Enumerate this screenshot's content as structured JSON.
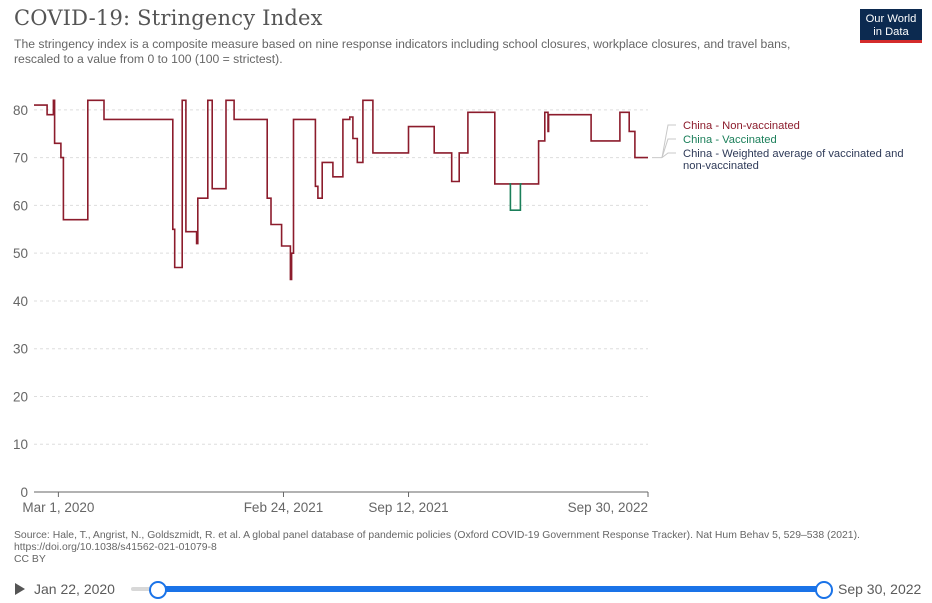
{
  "header": {
    "title": "COVID-19: Stringency Index",
    "subtitle": "The stringency index is a composite measure based on nine response indicators including school closures, workplace closures, and travel bans, rescaled to a value from 0 to 100 (100 = strictest).",
    "logo_line1": "Our World",
    "logo_line2": "in Data"
  },
  "footer": {
    "source": "Source: Hale, T., Angrist, N., Goldszmidt, R. et al. A global panel database of pandemic policies (Oxford COVID-19 Government Response Tracker). Nat Hum Behav 5, 529–538 (2021). https://doi.org/10.1038/s41562-021-01079-8",
    "license": "CC BY"
  },
  "timeline": {
    "start_label": "Jan 22, 2020",
    "end_label": "Sep 30, 2022",
    "selected_start_fraction": 0,
    "selected_end_fraction": 1,
    "accent_color": "#1a73e8"
  },
  "colors": {
    "non_vaccinated": "#8c1c2c",
    "vaccinated": "#1b7f5a",
    "weighted": "#2e3a58",
    "grid": "#dddddd",
    "axis": "#666666"
  },
  "chart_data": {
    "type": "line",
    "title": "COVID-19: Stringency Index",
    "xlim": [
      "2020-01-22",
      "2022-09-30"
    ],
    "ylim": [
      0,
      85
    ],
    "yticks": [
      0,
      10,
      20,
      30,
      40,
      50,
      60,
      70,
      80
    ],
    "xticks": [
      {
        "date": "2020-03-01",
        "label": "Mar 1, 2020"
      },
      {
        "date": "2021-02-24",
        "label": "Feb 24, 2021"
      },
      {
        "date": "2021-09-12",
        "label": "Sep 12, 2021"
      },
      {
        "date": "2022-09-30",
        "label": "Sep 30, 2022"
      }
    ],
    "grid": "horizontal dashed",
    "legend_position": "right",
    "series": [
      {
        "name": "China - Non-vaccinated",
        "color": "#8c1c2c",
        "shape": "step",
        "points": [
          [
            "2020-01-22",
            81.0
          ],
          [
            "2020-02-12",
            79.0
          ],
          [
            "2020-02-22",
            82.0
          ],
          [
            "2020-02-24",
            73.0
          ],
          [
            "2020-03-05",
            70.0
          ],
          [
            "2020-03-09",
            57.0
          ],
          [
            "2020-04-17",
            82.0
          ],
          [
            "2020-05-13",
            78.0
          ],
          [
            "2020-08-31",
            55.0
          ],
          [
            "2020-09-03",
            47.0
          ],
          [
            "2020-09-15",
            82.0
          ],
          [
            "2020-09-21",
            54.5
          ],
          [
            "2020-10-08",
            52.0
          ],
          [
            "2020-10-10",
            61.5
          ],
          [
            "2020-10-26",
            82.0
          ],
          [
            "2020-11-02",
            63.5
          ],
          [
            "2020-11-24",
            82.0
          ],
          [
            "2020-12-07",
            78.0
          ],
          [
            "2021-01-29",
            61.5
          ],
          [
            "2021-02-04",
            56.0
          ],
          [
            "2021-02-21",
            51.5
          ],
          [
            "2021-03-07",
            44.5
          ],
          [
            "2021-03-09",
            50.0
          ],
          [
            "2021-03-12",
            78.0
          ],
          [
            "2021-04-16",
            64.0
          ],
          [
            "2021-04-20",
            61.5
          ],
          [
            "2021-04-27",
            69.0
          ],
          [
            "2021-05-14",
            66.0
          ],
          [
            "2021-05-30",
            78.0
          ],
          [
            "2021-06-10",
            78.5
          ],
          [
            "2021-06-15",
            74.0
          ],
          [
            "2021-06-22",
            69.0
          ],
          [
            "2021-07-01",
            82.0
          ],
          [
            "2021-07-17",
            71.0
          ],
          [
            "2021-09-12",
            76.5
          ],
          [
            "2021-10-23",
            71.0
          ],
          [
            "2021-11-20",
            65.0
          ],
          [
            "2021-12-02",
            71.0
          ],
          [
            "2021-12-16",
            79.5
          ],
          [
            "2022-01-28",
            64.5
          ],
          [
            "2022-04-08",
            73.5
          ],
          [
            "2022-04-18",
            79.5
          ],
          [
            "2022-04-23",
            75.5
          ],
          [
            "2022-04-24",
            79.0
          ],
          [
            "2022-07-01",
            73.5
          ],
          [
            "2022-08-16",
            79.5
          ],
          [
            "2022-08-31",
            75.5
          ],
          [
            "2022-09-09",
            70.0
          ],
          [
            "2022-09-30",
            70.0
          ]
        ]
      },
      {
        "name": "China - Vaccinated",
        "color": "#1b7f5a",
        "shape": "step",
        "points": [
          [
            "2022-02-20",
            64.5
          ],
          [
            "2022-02-22",
            59.0
          ],
          [
            "2022-03-10",
            64.5
          ],
          [
            "2022-03-12",
            64.5
          ]
        ]
      },
      {
        "name": "China - Weighted average of vaccinated and non-vaccinated",
        "color": "#2e3a58",
        "shape": "step",
        "points": []
      }
    ]
  }
}
